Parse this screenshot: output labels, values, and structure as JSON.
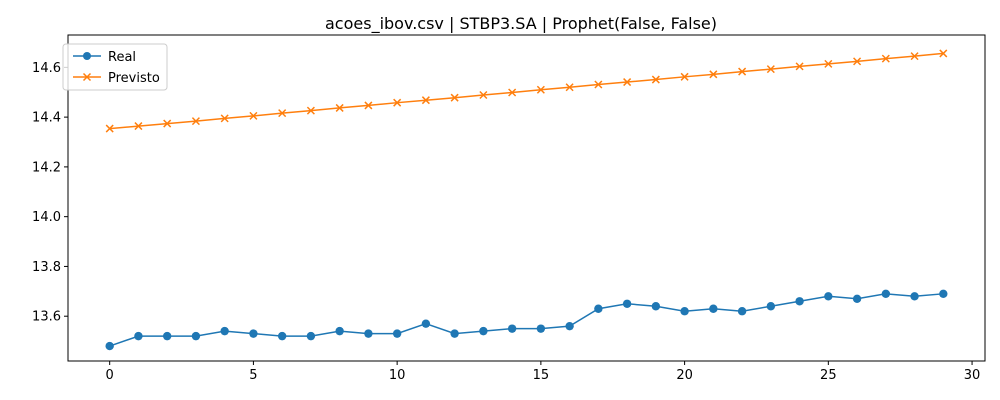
{
  "chart_data": {
    "type": "line",
    "title": "acoes_ibov.csv | STBP3.SA | Prophet(False, False)",
    "xlabel": "",
    "ylabel": "",
    "xlim": [
      -1.45,
      30.45
    ],
    "ylim": [
      13.42,
      14.73
    ],
    "xticks": [
      0,
      5,
      10,
      15,
      20,
      25,
      30
    ],
    "yticks": [
      13.6,
      13.8,
      14.0,
      14.2,
      14.4,
      14.6
    ],
    "xtick_labels": [
      "0",
      "5",
      "10",
      "15",
      "20",
      "25",
      "30"
    ],
    "ytick_labels": [
      "13.6",
      "13.8",
      "14.0",
      "14.2",
      "14.4",
      "14.6"
    ],
    "grid": false,
    "legend_position": "upper-left",
    "x": [
      0,
      1,
      2,
      3,
      4,
      5,
      6,
      7,
      8,
      9,
      10,
      11,
      12,
      13,
      14,
      15,
      16,
      17,
      18,
      19,
      20,
      21,
      22,
      23,
      24,
      25,
      26,
      27,
      28,
      29
    ],
    "series": [
      {
        "name": "Real",
        "color": "#1f77b4",
        "marker": "circle",
        "values": [
          13.48,
          13.52,
          13.52,
          13.52,
          13.54,
          13.53,
          13.52,
          13.52,
          13.54,
          13.53,
          13.53,
          13.57,
          13.53,
          13.54,
          13.55,
          13.55,
          13.56,
          13.63,
          13.65,
          13.64,
          13.62,
          13.63,
          13.62,
          13.64,
          13.66,
          13.68,
          13.67,
          13.69,
          13.68,
          13.69
        ]
      },
      {
        "name": "Previsto",
        "color": "#ff7f0e",
        "marker": "x",
        "values": [
          14.354,
          14.364,
          14.374,
          14.384,
          14.395,
          14.405,
          14.416,
          14.426,
          14.437,
          14.447,
          14.458,
          14.468,
          14.478,
          14.489,
          14.499,
          14.51,
          14.52,
          14.531,
          14.541,
          14.551,
          14.562,
          14.572,
          14.583,
          14.593,
          14.604,
          14.614,
          14.624,
          14.635,
          14.645,
          14.656
        ]
      }
    ]
  }
}
